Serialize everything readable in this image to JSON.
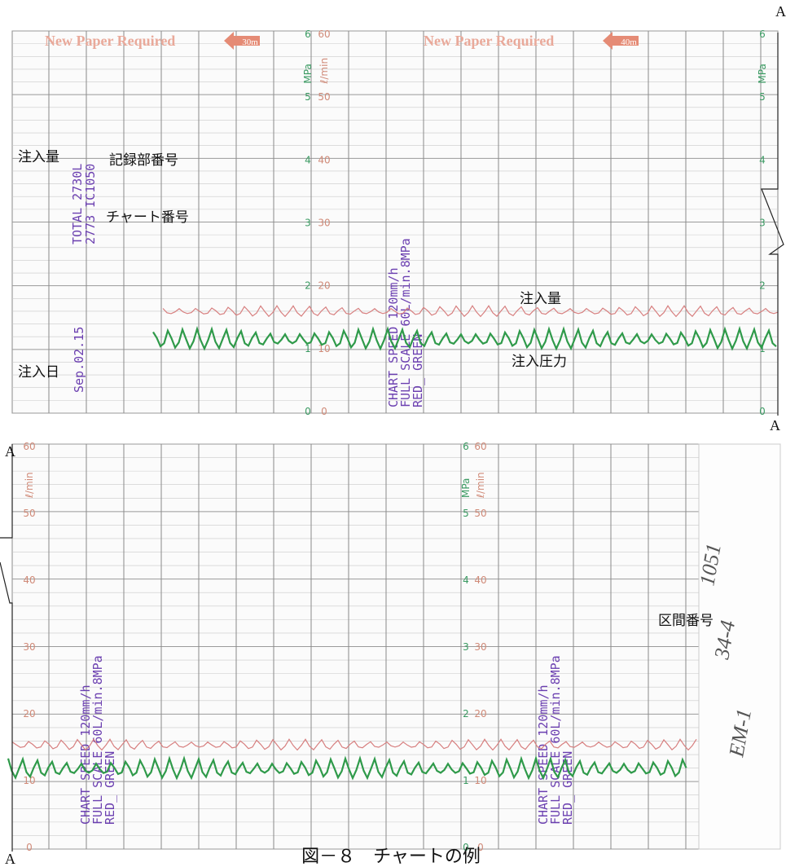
{
  "markers": [
    "A",
    "A",
    "A",
    "A"
  ],
  "pressure_unit": "MPa",
  "flow_unit": "ℓ/min",
  "pressure_ticks": [
    6,
    5,
    4,
    3,
    2,
    1,
    0
  ],
  "flow_ticks": [
    60,
    50,
    40,
    30,
    20,
    10,
    0
  ],
  "top_panel": {
    "notices": [
      {
        "text": "New Paper Required",
        "time": "30m"
      },
      {
        "text": "New Paper Required",
        "time": "40m"
      }
    ],
    "stamp_total": "TOTAL 2730L",
    "stamp_ids": "2773 IC1050",
    "stamp_date": "Sep.02.15",
    "chart_speed": [
      "CHART SPEED 120mm/h",
      "FULL SCALE 60L/min.8MPa",
      "RED_ GREEN"
    ]
  },
  "bottom_panel": {
    "chart_speed": [
      "CHART SPEED 120mm/h",
      "FULL SCALE 60L/min.8MPa",
      "RED_ GREEN"
    ],
    "handwriting": [
      "EM-1",
      "34-4",
      "1051"
    ]
  },
  "annotations": {
    "volume_left": "注入量",
    "recorder_number": "記録部番号",
    "chart_number": "チャート番号",
    "injection_date": "注入日",
    "volume_trace": "注入量",
    "pressure_trace": "注入圧力",
    "section_number": "区間番号"
  },
  "caption": "図－８　チャートの例"
}
